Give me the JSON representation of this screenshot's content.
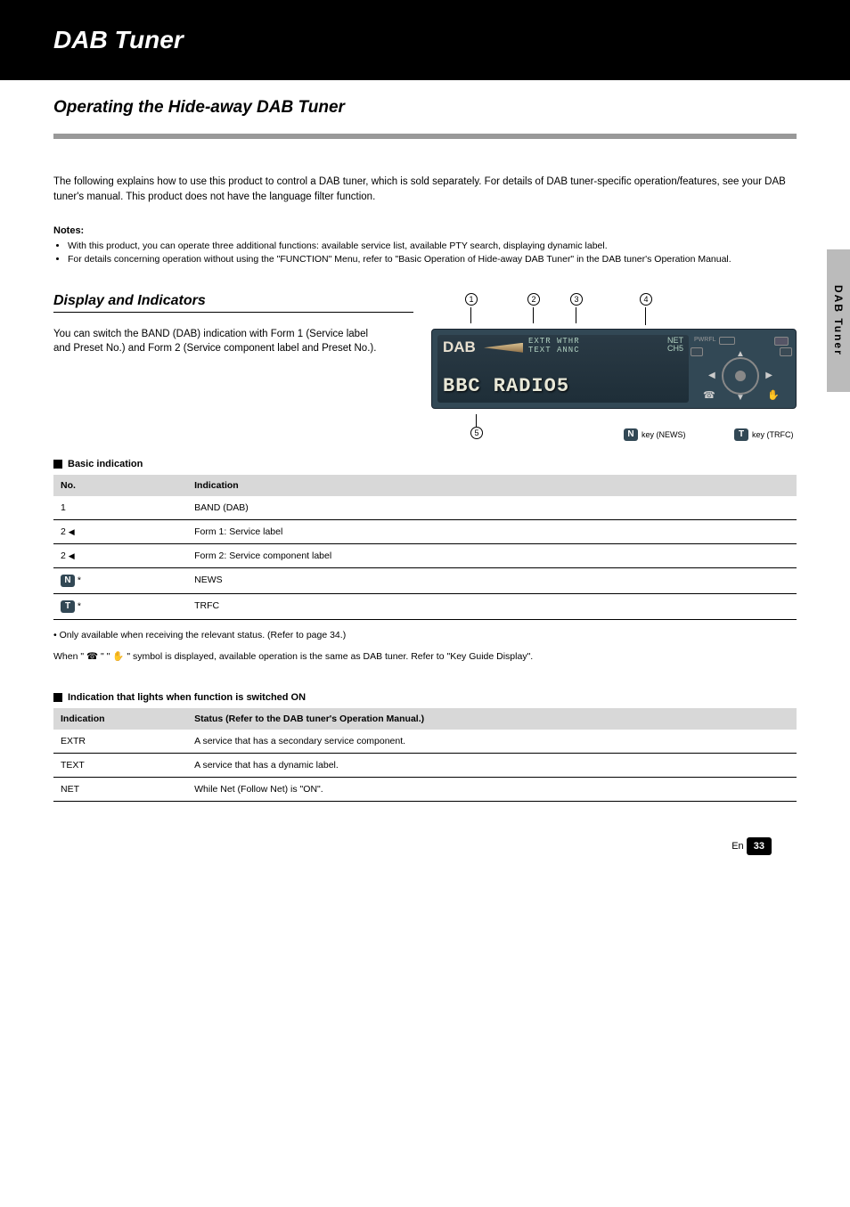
{
  "header": {
    "title": "DAB Tuner"
  },
  "section": {
    "title": "Operating the Hide-away DAB Tuner",
    "intro": "The following explains how to use this product to control a DAB tuner, which is sold separately. For details of DAB tuner-specific operation/features, see your DAB tuner's manual. This product does not have the language filter function.",
    "notes_heading": "Notes:",
    "notes": [
      "With this product, you can operate three additional functions: available service list, available PTY search, displaying dynamic label.",
      "For details concerning operation without using the \"FUNCTION\" Menu, refer to \"Basic Operation of Hide-away DAB Tuner\" in the DAB tuner's Operation Manual."
    ]
  },
  "display": {
    "subtitle": "Display and Indicators",
    "desc": "You can switch the BAND (DAB) indication with Form 1 (Service label and Preset No.) and Form 2 (Service component label and Preset No.).",
    "callouts": [
      "1",
      "2",
      "3",
      "4",
      "5"
    ],
    "lcd": {
      "dab": "DAB",
      "row1": "EXTR WTHR",
      "row2": "TEXT ANNC",
      "net": "NET",
      "ch": "CH5",
      "pwrfl": "PWRFL",
      "station": "BBC RADIO5"
    },
    "key_n_label": "key (NEWS)",
    "key_t_label": "key (TRFC)"
  },
  "table1": {
    "title": "Basic indication",
    "col1": "No.",
    "col2": "Indication",
    "rows": [
      [
        "1",
        "BAND (DAB)"
      ],
      [
        "2__tri",
        "Form 1: Service label"
      ],
      [
        "2b__tri",
        "Form 2: Service component label"
      ],
      [
        "3__N",
        "NEWS"
      ],
      [
        "4__T",
        "TRFC"
      ]
    ]
  },
  "footnote": "• Only available when receiving the relevant status. (Refer to page 34.)",
  "sym_sentence_prefix": "When \"",
  "sym_sentence_mid": "\"  \"",
  "sym_sentence_suffix": "\" symbol is displayed, available operation is the same as DAB tuner. Refer to \"Key Guide Display\".",
  "table2": {
    "title": "Indication that lights when function is switched ON",
    "col1": "Indication",
    "col2": "Status (Refer to the DAB tuner's Operation Manual.)",
    "rows": [
      [
        "EXTR",
        "A service that has a secondary service component."
      ],
      [
        "TEXT",
        "A service that has a dynamic label."
      ],
      [
        "NET",
        "While Net (Follow Net) is \"ON\"."
      ]
    ]
  },
  "side_tab": "DAB Tuner",
  "page": {
    "en": "En",
    "num": "33"
  }
}
